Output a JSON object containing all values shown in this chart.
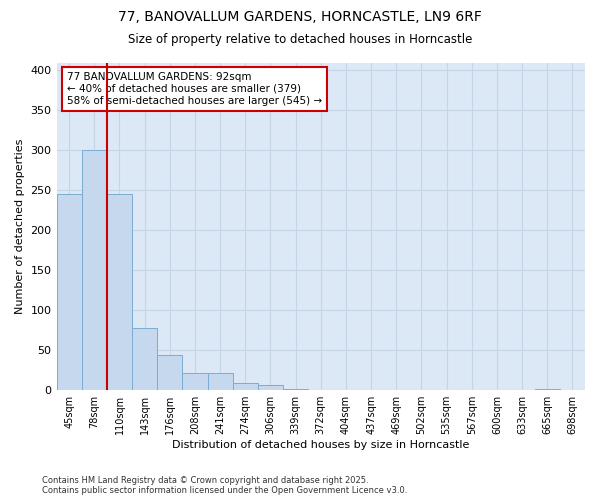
{
  "title_line1": "77, BANOVALLUM GARDENS, HORNCASTLE, LN9 6RF",
  "title_line2": "Size of property relative to detached houses in Horncastle",
  "xlabel": "Distribution of detached houses by size in Horncastle",
  "ylabel": "Number of detached properties",
  "bar_color": "#c5d8ee",
  "bar_edge_color": "#7aadd4",
  "grid_color": "#c5d5e8",
  "bg_color": "#dce8f5",
  "annotation_text": "77 BANOVALLUM GARDENS: 92sqm\n← 40% of detached houses are smaller (379)\n58% of semi-detached houses are larger (545) →",
  "annotation_box_color": "#ffffff",
  "annotation_edge_color": "#cc0000",
  "red_line_color": "#cc0000",
  "red_line_x": 1.5,
  "categories": [
    "45sqm",
    "78sqm",
    "110sqm",
    "143sqm",
    "176sqm",
    "208sqm",
    "241sqm",
    "274sqm",
    "306sqm",
    "339sqm",
    "372sqm",
    "404sqm",
    "437sqm",
    "469sqm",
    "502sqm",
    "535sqm",
    "567sqm",
    "600sqm",
    "633sqm",
    "665sqm",
    "698sqm"
  ],
  "values": [
    245,
    300,
    245,
    78,
    44,
    22,
    22,
    9,
    6,
    2,
    0,
    0,
    0,
    0,
    0,
    0,
    0,
    0,
    0,
    2,
    0
  ],
  "ylim": [
    0,
    410
  ],
  "yticks": [
    0,
    50,
    100,
    150,
    200,
    250,
    300,
    350,
    400
  ],
  "footnote": "Contains HM Land Registry data © Crown copyright and database right 2025.\nContains public sector information licensed under the Open Government Licence v3.0."
}
